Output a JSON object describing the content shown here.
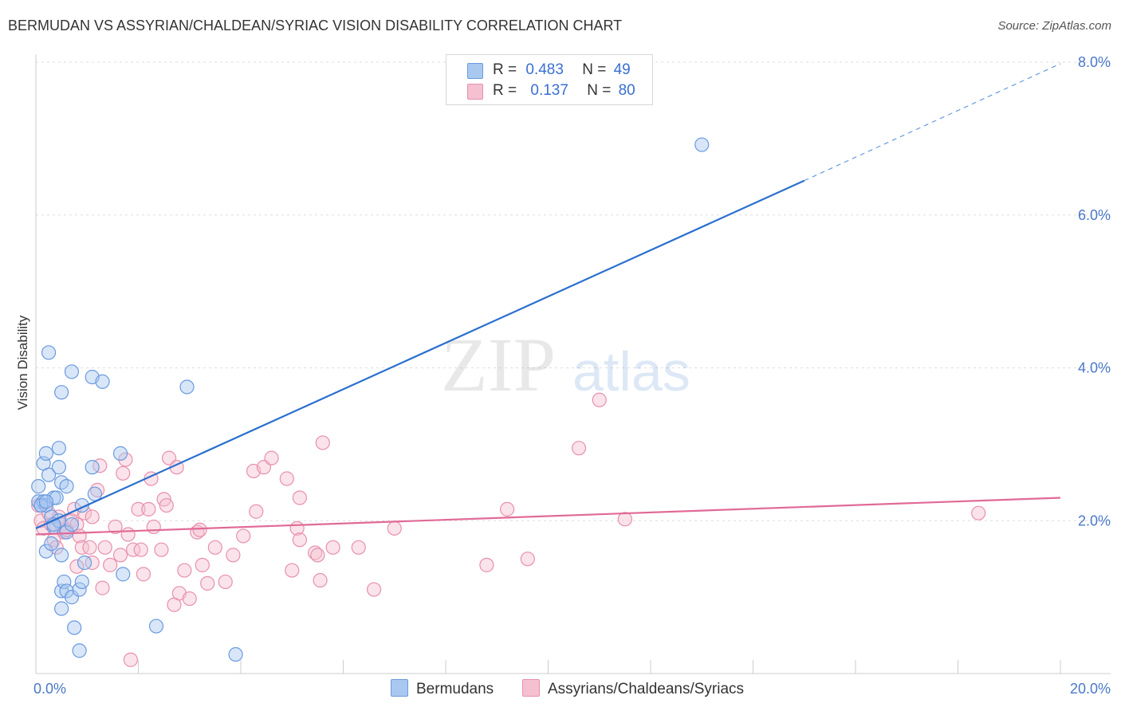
{
  "title": "BERMUDAN VS ASSYRIAN/CHALDEAN/SYRIAC VISION DISABILITY CORRELATION CHART",
  "source": "Source: ZipAtlas.com",
  "watermark": {
    "zip": "ZIP",
    "atlas": "atlas"
  },
  "legend": {
    "rows": [
      {
        "r_label": "R =",
        "r_value": "0.483",
        "n_label": "N =",
        "n_value": "49",
        "color": "#a8c8f0",
        "border": "#6a9ae0"
      },
      {
        "r_label": "R =",
        "r_value": "0.137",
        "n_label": "N =",
        "n_value": "80",
        "color": "#f5c0d0",
        "border": "#e890ac"
      }
    ]
  },
  "bottom_legend": [
    {
      "label": "Bermudans",
      "color": "#a8c8f0",
      "border": "#6a9ae0"
    },
    {
      "label": "Assyrians/Chaldeans/Syriacs",
      "color": "#f5c0d0",
      "border": "#e890ac"
    }
  ],
  "chart_data": {
    "type": "scatter",
    "title": "BERMUDAN VS ASSYRIAN/CHALDEAN/SYRIAC VISION DISABILITY CORRELATION CHART",
    "xlabel": "",
    "ylabel": "Vision Disability",
    "xlim": [
      0,
      20
    ],
    "ylim": [
      0,
      8
    ],
    "x_tick_labels": [
      "0.0%",
      "20.0%"
    ],
    "y_ticks": [
      2,
      4,
      6,
      8
    ],
    "y_tick_labels": [
      "2.0%",
      "4.0%",
      "6.0%",
      "8.0%"
    ],
    "grid": true,
    "legend_position": "top-center",
    "series": [
      {
        "name": "Bermudans",
        "color": "#6a9ae0",
        "fill": "#a8c8f0",
        "line_color": "#2a6fcf",
        "trend": {
          "x0": 0,
          "y0": 1.9,
          "x1": 15.0,
          "y1": 6.45,
          "dashed_to_x": 20.0,
          "dashed_to_y": 7.98
        },
        "points": [
          [
            0.05,
            2.45
          ],
          [
            0.05,
            2.25
          ],
          [
            0.1,
            2.2
          ],
          [
            0.15,
            2.25
          ],
          [
            0.2,
            2.2
          ],
          [
            0.15,
            2.75
          ],
          [
            0.2,
            2.88
          ],
          [
            0.25,
            2.6
          ],
          [
            0.35,
            2.3
          ],
          [
            0.4,
            2.3
          ],
          [
            0.3,
            2.05
          ],
          [
            0.35,
            1.92
          ],
          [
            0.45,
            2.95
          ],
          [
            0.45,
            2.7
          ],
          [
            0.5,
            2.5
          ],
          [
            0.5,
            1.55
          ],
          [
            0.2,
            1.6
          ],
          [
            0.3,
            1.7
          ],
          [
            0.6,
            1.85
          ],
          [
            0.7,
            1.95
          ],
          [
            0.5,
            0.85
          ],
          [
            0.5,
            1.08
          ],
          [
            0.55,
            1.2
          ],
          [
            0.6,
            1.08
          ],
          [
            0.7,
            1.0
          ],
          [
            0.75,
            0.6
          ],
          [
            0.85,
            0.3
          ],
          [
            0.85,
            1.1
          ],
          [
            0.9,
            1.2
          ],
          [
            0.95,
            1.45
          ],
          [
            0.9,
            2.2
          ],
          [
            1.15,
            2.35
          ],
          [
            1.1,
            2.7
          ],
          [
            1.1,
            3.88
          ],
          [
            1.3,
            3.82
          ],
          [
            0.7,
            3.95
          ],
          [
            0.5,
            3.68
          ],
          [
            0.25,
            4.2
          ],
          [
            1.65,
            2.88
          ],
          [
            1.7,
            1.3
          ],
          [
            2.35,
            0.62
          ],
          [
            2.95,
            3.75
          ],
          [
            3.9,
            0.25
          ],
          [
            0.1,
            2.2
          ],
          [
            0.45,
            2.0
          ],
          [
            0.2,
            2.25
          ],
          [
            13.0,
            6.92
          ],
          [
            0.35,
            1.95
          ],
          [
            0.6,
            2.45
          ]
        ]
      },
      {
        "name": "Assyrians/Chaldeans/Syriacs",
        "color": "#e890ac",
        "fill": "#f5c0d0",
        "line_color": "#e06a96",
        "trend": {
          "x0": 0,
          "y0": 1.82,
          "x1": 20.0,
          "y1": 2.3
        },
        "points": [
          [
            0.05,
            2.2
          ],
          [
            0.1,
            2.0
          ],
          [
            0.15,
            1.9
          ],
          [
            0.25,
            2.1
          ],
          [
            0.3,
            1.95
          ],
          [
            0.35,
            1.75
          ],
          [
            0.4,
            1.65
          ],
          [
            0.45,
            2.05
          ],
          [
            0.5,
            1.95
          ],
          [
            0.55,
            1.85
          ],
          [
            0.6,
            1.88
          ],
          [
            0.7,
            2.0
          ],
          [
            0.75,
            2.15
          ],
          [
            0.8,
            1.95
          ],
          [
            0.85,
            1.8
          ],
          [
            0.9,
            1.65
          ],
          [
            0.8,
            1.4
          ],
          [
            0.95,
            2.1
          ],
          [
            1.05,
            1.65
          ],
          [
            1.1,
            2.05
          ],
          [
            1.1,
            1.45
          ],
          [
            1.2,
            2.4
          ],
          [
            1.25,
            2.72
          ],
          [
            1.3,
            1.12
          ],
          [
            1.35,
            1.65
          ],
          [
            1.45,
            1.42
          ],
          [
            1.55,
            1.92
          ],
          [
            1.65,
            1.55
          ],
          [
            1.7,
            2.62
          ],
          [
            1.75,
            2.8
          ],
          [
            1.8,
            1.82
          ],
          [
            1.85,
            0.18
          ],
          [
            1.9,
            1.62
          ],
          [
            2.0,
            2.15
          ],
          [
            2.05,
            1.62
          ],
          [
            2.1,
            1.3
          ],
          [
            2.2,
            2.15
          ],
          [
            2.25,
            2.55
          ],
          [
            2.3,
            1.92
          ],
          [
            2.45,
            1.62
          ],
          [
            2.5,
            2.28
          ],
          [
            2.55,
            2.2
          ],
          [
            2.6,
            2.82
          ],
          [
            2.7,
            0.9
          ],
          [
            2.75,
            2.7
          ],
          [
            2.8,
            1.05
          ],
          [
            2.9,
            1.35
          ],
          [
            3.0,
            0.98
          ],
          [
            3.15,
            1.85
          ],
          [
            3.25,
            1.42
          ],
          [
            3.35,
            1.18
          ],
          [
            3.5,
            1.65
          ],
          [
            3.7,
            1.2
          ],
          [
            3.85,
            1.55
          ],
          [
            4.05,
            1.8
          ],
          [
            4.25,
            2.65
          ],
          [
            4.3,
            2.12
          ],
          [
            4.45,
            2.7
          ],
          [
            4.6,
            2.82
          ],
          [
            4.9,
            2.55
          ],
          [
            5.0,
            1.35
          ],
          [
            5.1,
            1.9
          ],
          [
            5.15,
            2.3
          ],
          [
            5.15,
            1.75
          ],
          [
            5.45,
            1.58
          ],
          [
            5.5,
            1.55
          ],
          [
            5.55,
            1.22
          ],
          [
            5.6,
            3.02
          ],
          [
            5.8,
            1.65
          ],
          [
            6.3,
            1.65
          ],
          [
            6.6,
            1.1
          ],
          [
            7.0,
            1.9
          ],
          [
            8.8,
            1.42
          ],
          [
            9.2,
            2.15
          ],
          [
            9.6,
            1.5
          ],
          [
            10.6,
            2.95
          ],
          [
            11.0,
            3.58
          ],
          [
            11.5,
            2.02
          ],
          [
            18.4,
            2.1
          ],
          [
            3.2,
            1.88
          ]
        ]
      }
    ]
  }
}
